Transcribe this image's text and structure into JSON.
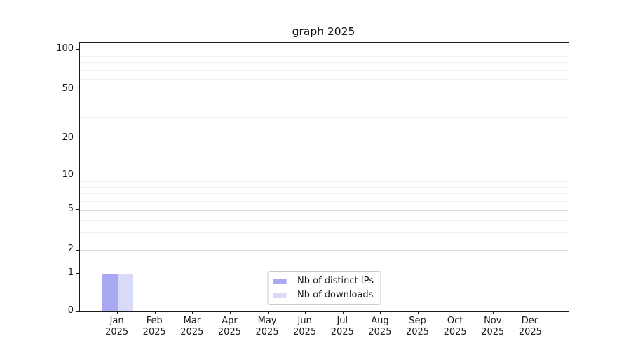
{
  "page": {
    "background": "#ffffff"
  },
  "chart_data": {
    "type": "bar",
    "title": "graph 2025",
    "categories": [
      "Jan 2025",
      "Feb 2025",
      "Mar 2025",
      "Apr 2025",
      "May 2025",
      "Jun 2025",
      "Jul 2025",
      "Aug 2025",
      "Sep 2025",
      "Oct 2025",
      "Nov 2025",
      "Dec 2025"
    ],
    "series": [
      {
        "name": "Nb of distinct IPs",
        "color": "#a9a9f2",
        "values": [
          1,
          0,
          0,
          0,
          0,
          0,
          0,
          0,
          0,
          0,
          0,
          0
        ]
      },
      {
        "name": "Nb of downloads",
        "color": "#d9d9f8",
        "values": [
          1,
          0,
          0,
          0,
          0,
          0,
          0,
          0,
          0,
          0,
          0,
          0
        ]
      }
    ],
    "yscale": "symlog",
    "yticks": [
      0,
      1,
      2,
      5,
      10,
      20,
      50,
      100
    ],
    "ylim": [
      0,
      100
    ],
    "grid": true,
    "legend_position": "lower center"
  },
  "legend": {
    "items": [
      {
        "label": "Nb of distinct IPs",
        "color": "#a9a9f2"
      },
      {
        "label": "Nb of downloads",
        "color": "#d9d9f8"
      }
    ]
  },
  "colors": {
    "grid_major": "#c9c9c9",
    "grid_labeled": "#dedede",
    "grid_minor": "#f0f0f0",
    "axis": "#1a1a1a",
    "text": "#1a1a1a"
  }
}
